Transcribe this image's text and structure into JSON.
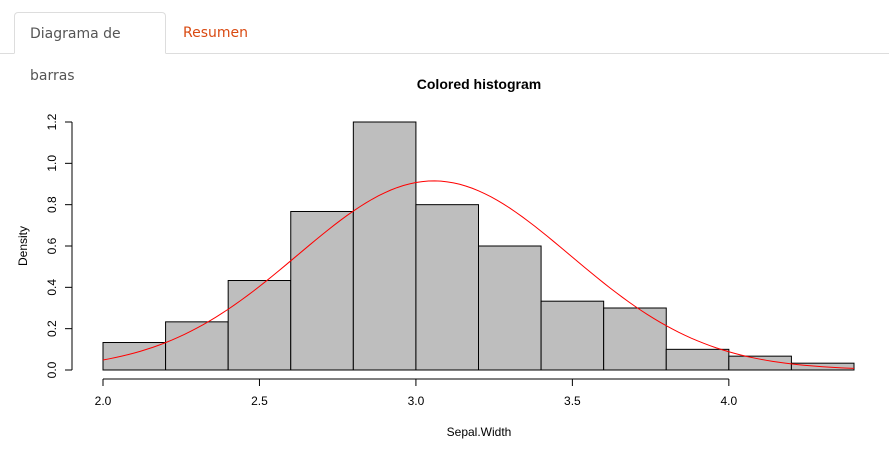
{
  "tabs": [
    {
      "label": "Diagrama de barras",
      "active": true
    },
    {
      "label": "Resumen",
      "active": false
    }
  ],
  "colors": {
    "accent": "#d94a12",
    "bar_fill": "#bebebe",
    "curve": "#ff0000"
  },
  "chart_data": {
    "type": "bar",
    "title": "Colored histogram",
    "xlabel": "Sepal.Width",
    "ylabel": "Density",
    "xlim": [
      2.0,
      4.4
    ],
    "ylim": [
      0,
      1.2
    ],
    "xticks": [
      "2.0",
      "2.5",
      "3.0",
      "3.5",
      "4.0"
    ],
    "yticks": [
      "0.0",
      "0.2",
      "0.4",
      "0.6",
      "0.8",
      "1.0",
      "1.2"
    ],
    "bins": [
      {
        "start": 2.0,
        "end": 2.2,
        "density": 0.133
      },
      {
        "start": 2.2,
        "end": 2.4,
        "density": 0.233
      },
      {
        "start": 2.4,
        "end": 2.6,
        "density": 0.433
      },
      {
        "start": 2.6,
        "end": 2.8,
        "density": 0.767
      },
      {
        "start": 2.8,
        "end": 3.0,
        "density": 1.2
      },
      {
        "start": 3.0,
        "end": 3.2,
        "density": 0.8
      },
      {
        "start": 3.2,
        "end": 3.4,
        "density": 0.6
      },
      {
        "start": 3.4,
        "end": 3.6,
        "density": 0.333
      },
      {
        "start": 3.6,
        "end": 3.8,
        "density": 0.3
      },
      {
        "start": 3.8,
        "end": 4.0,
        "density": 0.1
      },
      {
        "start": 4.0,
        "end": 4.2,
        "density": 0.067
      },
      {
        "start": 4.2,
        "end": 4.4,
        "density": 0.033
      }
    ],
    "curve": {
      "type": "normal",
      "mean": 3.057,
      "sd": 0.436,
      "x_from": 2.0,
      "x_to": 4.4
    }
  }
}
